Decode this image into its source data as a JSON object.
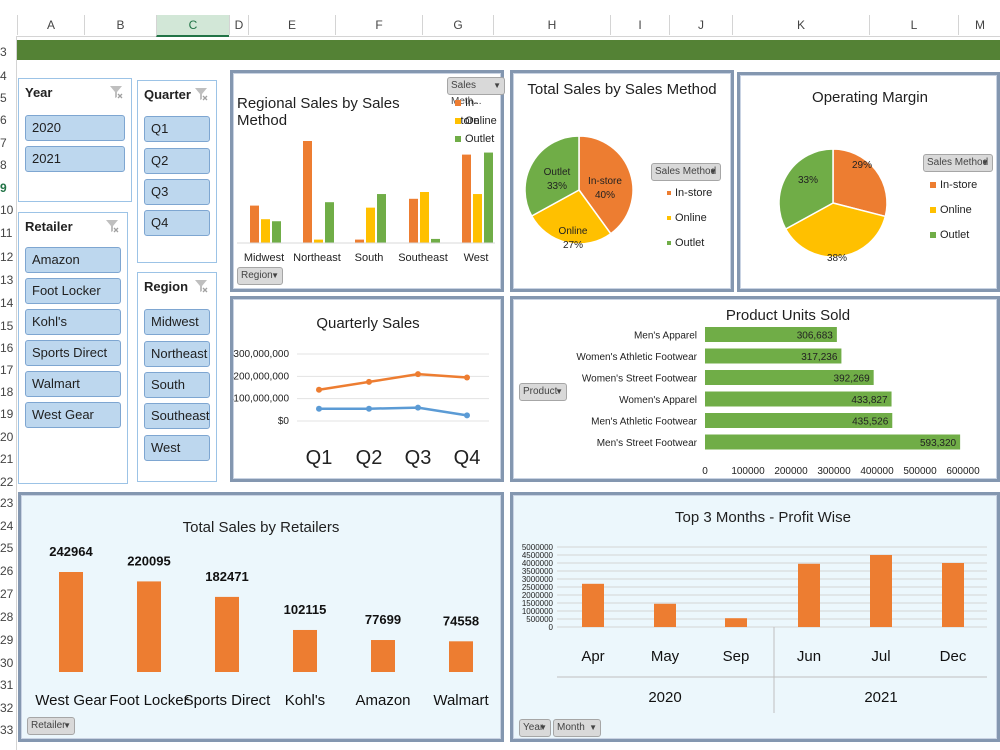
{
  "columns": [
    "A",
    "B",
    "C",
    "D",
    "E",
    "F",
    "G",
    "H",
    "I",
    "J",
    "K",
    "L",
    "M"
  ],
  "rows": [
    "3",
    "4",
    "5",
    "6",
    "7",
    "8",
    "9",
    "10",
    "11",
    "12",
    "13",
    "14",
    "15",
    "16",
    "17",
    "18",
    "19",
    "20",
    "21",
    "22",
    "23",
    "24",
    "25",
    "26",
    "27",
    "28",
    "29",
    "30",
    "31",
    "32",
    "33"
  ],
  "colors": {
    "orange": "#ed7d31",
    "yellow": "#ffc000",
    "green": "#70ad47",
    "blue": "#5b9bd5",
    "header_bar": "#548235"
  },
  "slicers": {
    "year": {
      "title": "Year",
      "items": [
        "2020",
        "2021"
      ]
    },
    "quarter": {
      "title": "Quarter",
      "items": [
        "Q1",
        "Q2",
        "Q3",
        "Q4"
      ]
    },
    "retailer": {
      "title": "Retailer",
      "items": [
        "Amazon",
        "Foot Locker",
        "Kohl's",
        "Sports Direct",
        "Walmart",
        "West Gear"
      ]
    },
    "region": {
      "title": "Region",
      "items": [
        "Midwest",
        "Northeast",
        "South",
        "Southeast",
        "West"
      ]
    }
  },
  "buttons": {
    "sales_method_trunc": "Sales Meth...",
    "sales_method": "Sales Method",
    "region": "Region",
    "product": "Product",
    "retailer": "Retailer",
    "year": "Year",
    "month": "Month"
  },
  "legend": {
    "in_store": "In-store",
    "online": "Online",
    "outlet": "Outlet"
  },
  "chart_data": [
    {
      "type": "bar",
      "title": "Regional Sales by Sales Method",
      "categories": [
        "Midwest",
        "Northeast",
        "South",
        "Southeast",
        "West"
      ],
      "series": [
        {
          "name": "In-store",
          "values": [
            55,
            150,
            5,
            65,
            130
          ]
        },
        {
          "name": "Online",
          "values": [
            35,
            5,
            52,
            75,
            72
          ]
        },
        {
          "name": "Outlet",
          "values": [
            32,
            60,
            72,
            6,
            133
          ]
        }
      ]
    },
    {
      "type": "pie",
      "title": "Total Sales by Sales Method",
      "slices": [
        {
          "label": "In-store",
          "value": 40,
          "text": "40%"
        },
        {
          "label": "Online",
          "value": 27,
          "text": "27%"
        },
        {
          "label": "Outlet",
          "value": 33,
          "text": "33%"
        }
      ]
    },
    {
      "type": "pie",
      "title": "Operating Margin",
      "slices": [
        {
          "label": "In-store",
          "value": 29,
          "text": "29%"
        },
        {
          "label": "Online",
          "value": 38,
          "text": "38%"
        },
        {
          "label": "Outlet",
          "value": 33,
          "text": "33%"
        }
      ]
    },
    {
      "type": "line",
      "title": "Quarterly Sales",
      "categories": [
        "Q1",
        "Q2",
        "Q3",
        "Q4"
      ],
      "yticks": [
        "$300,000,000",
        "$200,000,000",
        "$100,000,000",
        "$0"
      ],
      "ylim": [
        0,
        300000000
      ],
      "series": [
        {
          "color": "orange",
          "values": [
            140000000,
            175000000,
            210000000,
            195000000
          ]
        },
        {
          "color": "blue",
          "values": [
            55000000,
            55000000,
            60000000,
            25000000
          ]
        }
      ]
    },
    {
      "type": "bar",
      "orientation": "horizontal",
      "title": "Product Units Sold",
      "categories": [
        "Men's Apparel",
        "Women's Athletic Footwear",
        "Women's Street Footwear",
        "Women's Apparel",
        "Men's Athletic Footwear",
        "Men's Street Footwear"
      ],
      "values": [
        306683,
        317236,
        392269,
        433827,
        435526,
        593320
      ],
      "labels": [
        "306,683",
        "317,236",
        "392,269",
        "433,827",
        "435,526",
        "593,320"
      ],
      "xticks": [
        "0",
        "100000",
        "200000",
        "300000",
        "400000",
        "500000",
        "600000"
      ],
      "xlim": [
        0,
        600000
      ]
    },
    {
      "type": "bar",
      "title": "Total Sales by Retailers",
      "categories": [
        "West Gear",
        "Foot Locker",
        "Sports Direct",
        "Kohl's",
        "Amazon",
        "Walmart"
      ],
      "values": [
        242964,
        220095,
        182471,
        102115,
        77699,
        74558
      ],
      "labels": [
        "242964",
        "220095",
        "182471",
        "102115",
        "77699",
        "74558"
      ]
    },
    {
      "type": "bar",
      "title": "Top 3 Months - Profit Wise",
      "categories": [
        "Apr",
        "May",
        "Sep",
        "Jun",
        "Jul",
        "Dec"
      ],
      "groups": [
        {
          "label": "2020",
          "count": 3
        },
        {
          "label": "2021",
          "count": 3
        }
      ],
      "values": [
        2700000,
        1450000,
        550000,
        3950000,
        4500000,
        4000000
      ],
      "yticks": [
        "5000000",
        "4500000",
        "4000000",
        "3500000",
        "3000000",
        "2500000",
        "2000000",
        "1500000",
        "1000000",
        "500000",
        "0"
      ],
      "ylim": [
        0,
        5000000
      ]
    }
  ]
}
